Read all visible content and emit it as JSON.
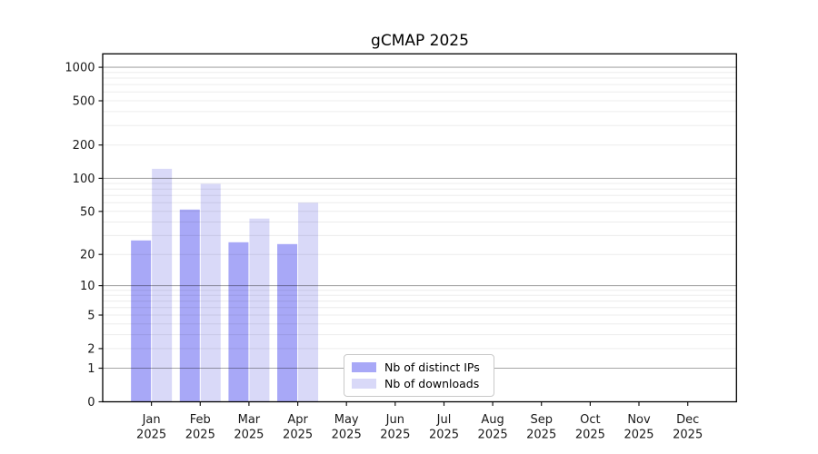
{
  "title": "gCMAP 2025",
  "legend": {
    "items": [
      {
        "label": "Nb of distinct IPs",
        "color": "#a8a8f7"
      },
      {
        "label": "Nb of downloads",
        "color": "#d9d9f8"
      }
    ]
  },
  "chart_data": {
    "type": "bar",
    "title": "gCMAP 2025",
    "year": "2025",
    "categories": [
      "Jan",
      "Feb",
      "Mar",
      "Apr",
      "May",
      "Jun",
      "Jul",
      "Aug",
      "Sep",
      "Oct",
      "Nov",
      "Dec"
    ],
    "series": [
      {
        "name": "Nb of distinct IPs",
        "color": "#a8a8f7",
        "values": [
          27,
          52,
          26,
          25,
          0,
          0,
          0,
          0,
          0,
          0,
          0,
          0
        ]
      },
      {
        "name": "Nb of downloads",
        "color": "#d9d9f8",
        "values": [
          122,
          89,
          43,
          60,
          0,
          0,
          0,
          0,
          0,
          0,
          0,
          0
        ]
      }
    ],
    "xlabel": "",
    "ylabel": "",
    "y_ticks": [
      0,
      1,
      2,
      5,
      10,
      20,
      50,
      100,
      200,
      500,
      1000
    ],
    "y_scale": "log10(value+1)",
    "ylim": [
      0,
      1320
    ],
    "grid": {
      "horizontal_only": true,
      "major_at": [
        1,
        10,
        100,
        1000
      ],
      "minor_at": "2..9 times each decade",
      "major_color": "rgba(0,0,0,0.35)",
      "minor_color": "rgba(0,0,0,0.075)",
      "drawn_over_bars": true
    },
    "legend_position": "inside-bottom-center"
  }
}
